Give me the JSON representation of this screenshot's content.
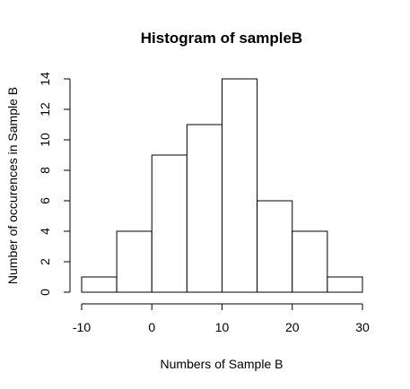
{
  "chart_data": {
    "type": "bar",
    "title": "Histogram of sampleB",
    "xlabel": "Numbers of Sample B",
    "ylabel": "Number of occurences in Sample B",
    "bins": [
      {
        "start": -10,
        "end": -5,
        "count": 1
      },
      {
        "start": -5,
        "end": 0,
        "count": 4
      },
      {
        "start": 0,
        "end": 5,
        "count": 9
      },
      {
        "start": 5,
        "end": 10,
        "count": 11
      },
      {
        "start": 10,
        "end": 15,
        "count": 14
      },
      {
        "start": 15,
        "end": 20,
        "count": 6
      },
      {
        "start": 20,
        "end": 25,
        "count": 4
      },
      {
        "start": 25,
        "end": 30,
        "count": 1
      }
    ],
    "xlim": [
      -10,
      30
    ],
    "ylim": [
      0,
      14
    ],
    "x_ticks": [
      -10,
      0,
      10,
      20,
      30
    ],
    "y_ticks": [
      0,
      2,
      4,
      6,
      8,
      10,
      12,
      14
    ],
    "grid": false,
    "bar_fill": "#ffffff",
    "bar_stroke": "#000000"
  }
}
